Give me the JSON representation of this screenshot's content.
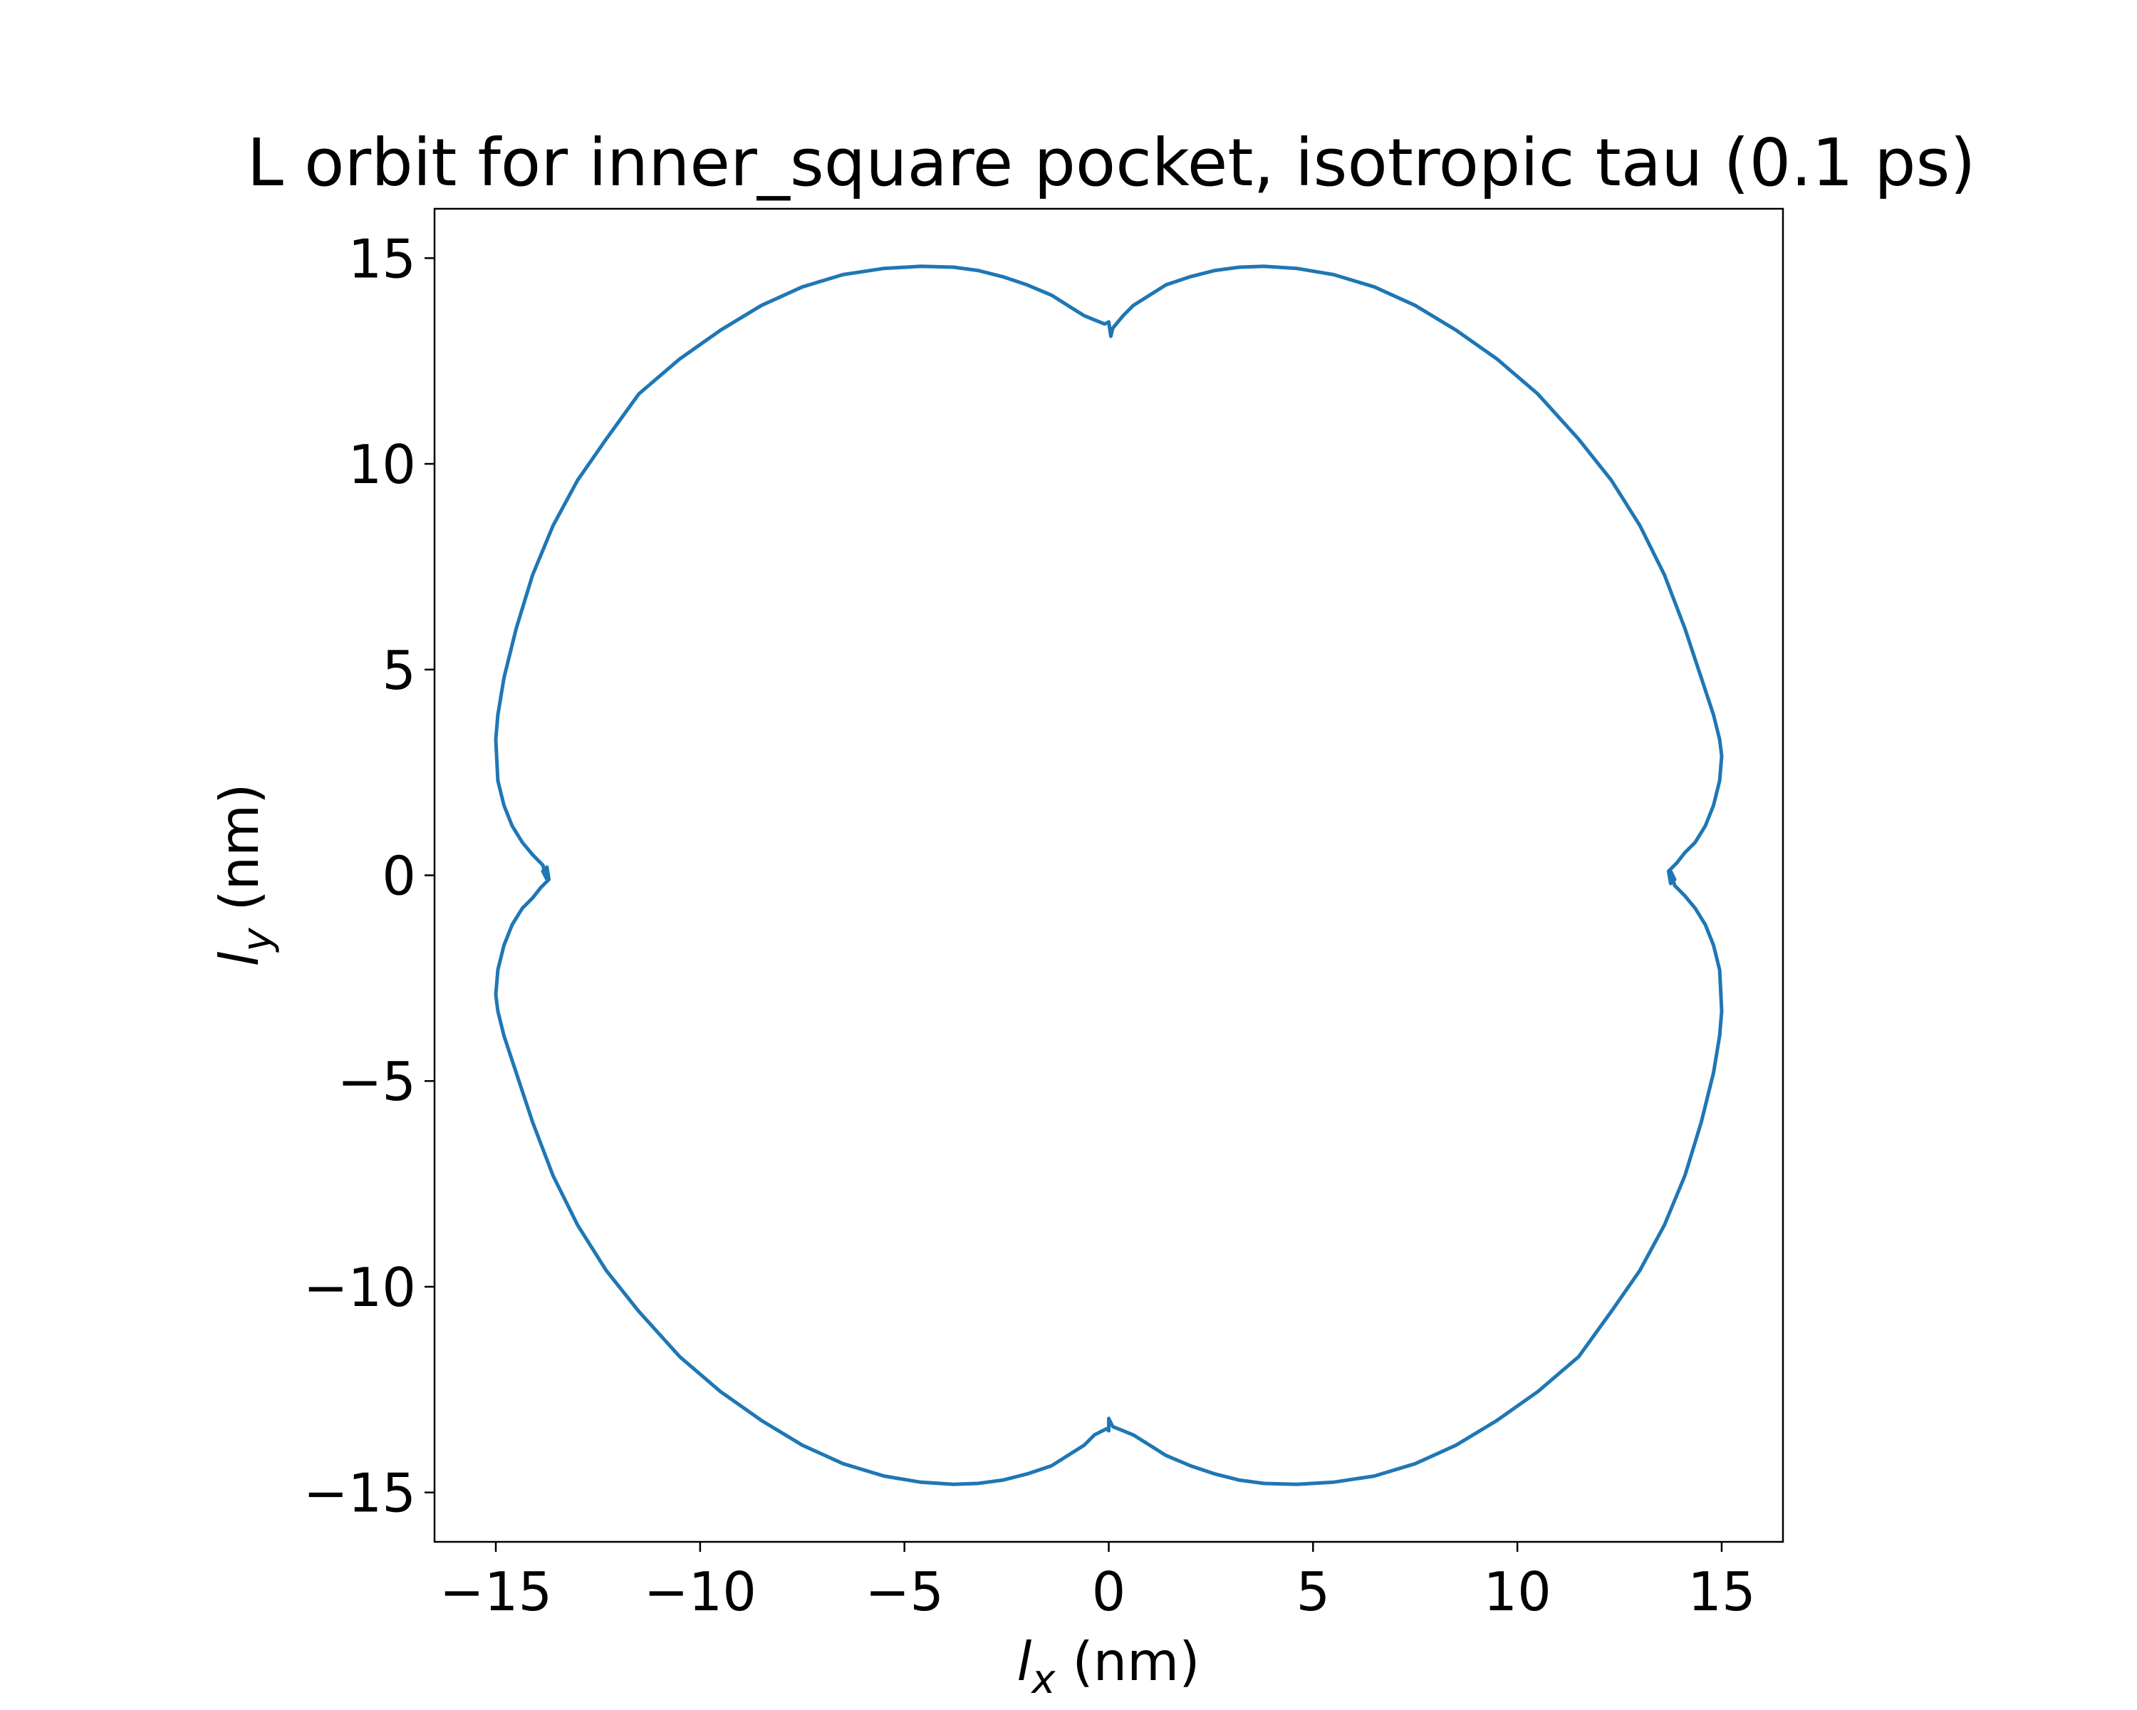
{
  "chart_data": {
    "type": "line",
    "title": "L orbit for inner_square pocket, isotropic tau (0.1 ps)",
    "xlabel": {
      "var": "l",
      "sub": "x",
      "unit": " (nm)"
    },
    "ylabel": {
      "var": "l",
      "sub": "y",
      "unit": " (nm)"
    },
    "xlim": [
      -16.5,
      16.5
    ],
    "ylim": [
      -16.2,
      16.2
    ],
    "xticks": [
      -15,
      -10,
      -5,
      0,
      5,
      10,
      15
    ],
    "yticks": [
      -15,
      -10,
      -5,
      0,
      5,
      10,
      15
    ],
    "tick_labels_x": [
      "−15",
      "−10",
      "−5",
      "0",
      "5",
      "10",
      "15"
    ],
    "tick_labels_y": [
      "−15",
      "−10",
      "−5",
      "0",
      "5",
      "10",
      "15"
    ],
    "grid": false,
    "legend": "none",
    "line_color": "#1f77b4",
    "series": [
      {
        "x": [
          0.1,
          0.35,
          0.6,
          1.0,
          1.4,
          2.0,
          2.6,
          3.2,
          3.8,
          4.6,
          5.5,
          6.5,
          7.5,
          8.5,
          9.5,
          10.5,
          11.5,
          12.3,
          13.0,
          13.6,
          14.1,
          14.5,
          14.8,
          14.95,
          15.0,
          14.95,
          14.8,
          14.6,
          14.35,
          14.1,
          13.9,
          13.7,
          13.75,
          13.85,
          13.75,
          13.85,
          14.1,
          14.35,
          14.6,
          14.8,
          14.95,
          15.0,
          14.95,
          14.8,
          14.5,
          14.1,
          13.6,
          13.0,
          12.3,
          11.5,
          10.5,
          9.5,
          8.5,
          7.5,
          6.5,
          5.5,
          4.6,
          3.8,
          3.2,
          2.6,
          2.0,
          1.4,
          1.0,
          0.6,
          0.35,
          0.1,
          0.0,
          0.0,
          -0.05,
          -0.35,
          -0.6,
          -1.0,
          -1.4,
          -2.0,
          -2.6,
          -3.2,
          -3.8,
          -4.6,
          -5.5,
          -6.5,
          -7.5,
          -8.5,
          -9.5,
          -10.5,
          -11.5,
          -12.3,
          -13.0,
          -13.6,
          -14.1,
          -14.5,
          -14.8,
          -14.95,
          -15.0,
          -14.95,
          -14.8,
          -14.6,
          -14.35,
          -14.1,
          -13.9,
          -13.7,
          -13.75,
          -13.85,
          -13.75,
          -13.85,
          -14.1,
          -14.35,
          -14.6,
          -14.8,
          -14.95,
          -15.0,
          -14.95,
          -14.8,
          -14.5,
          -14.1,
          -13.6,
          -13.0,
          -12.3,
          -11.5,
          -10.5,
          -9.5,
          -8.5,
          -7.5,
          -6.5,
          -5.5,
          -4.6,
          -3.8,
          -3.2,
          -2.6,
          -2.0,
          -1.4,
          -1.0,
          -0.6,
          -0.35,
          -0.1,
          0.0,
          0.05,
          0.1
        ],
        "y": [
          13.3,
          13.6,
          13.85,
          14.1,
          14.35,
          14.55,
          14.7,
          14.78,
          14.8,
          14.75,
          14.6,
          14.3,
          13.85,
          13.25,
          12.55,
          11.7,
          10.6,
          9.6,
          8.5,
          7.3,
          6.0,
          4.8,
          3.9,
          3.3,
          2.9,
          2.3,
          1.7,
          1.2,
          0.8,
          0.55,
          0.3,
          0.1,
          -0.2,
          -0.1,
          0.1,
          -0.25,
          -0.5,
          -0.8,
          -1.2,
          -1.7,
          -2.3,
          -3.3,
          -3.9,
          -4.8,
          -6.0,
          -7.3,
          -8.5,
          -9.6,
          -10.6,
          -11.7,
          -12.55,
          -13.25,
          -13.85,
          -14.3,
          -14.6,
          -14.75,
          -14.8,
          -14.78,
          -14.7,
          -14.55,
          -14.35,
          -14.1,
          -13.85,
          -13.6,
          -13.5,
          -13.4,
          -13.2,
          -13.5,
          -13.45,
          -13.6,
          -13.85,
          -14.1,
          -14.35,
          -14.55,
          -14.7,
          -14.78,
          -14.8,
          -14.75,
          -14.6,
          -14.3,
          -13.85,
          -13.25,
          -12.55,
          -11.7,
          -10.6,
          -9.6,
          -8.5,
          -7.3,
          -6.0,
          -4.8,
          -3.9,
          -3.3,
          -2.9,
          -2.3,
          -1.7,
          -1.2,
          -0.8,
          -0.55,
          -0.3,
          -0.1,
          0.2,
          0.1,
          -0.1,
          0.25,
          0.5,
          0.8,
          1.2,
          1.7,
          2.3,
          3.3,
          3.9,
          4.8,
          6.0,
          7.3,
          8.5,
          9.6,
          10.6,
          11.7,
          12.55,
          13.25,
          13.85,
          14.3,
          14.6,
          14.75,
          14.8,
          14.78,
          14.7,
          14.55,
          14.35,
          14.1,
          13.85,
          13.6,
          13.5,
          13.4,
          13.45,
          13.1,
          13.3
        ]
      }
    ]
  }
}
